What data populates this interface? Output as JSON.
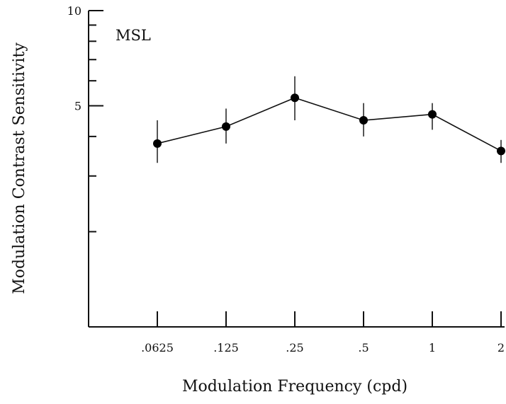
{
  "chart_data": {
    "type": "line",
    "title": "",
    "panel_label": "MSL",
    "xlabel": "Modulation Frequency (cpd)",
    "ylabel": "Modulation Contrast Sensitivity",
    "x_scale": "log2",
    "y_scale": "log",
    "ylim": [
      1,
      10
    ],
    "y_tick_labels": [
      {
        "value": 5,
        "label": "5"
      },
      {
        "value": 10,
        "label": "10"
      }
    ],
    "y_minor_ticks": [
      2,
      3,
      4,
      6,
      7,
      8,
      9
    ],
    "categories": [
      ".0625",
      ".125",
      ".25",
      ".5",
      "1",
      "2"
    ],
    "x": [
      0.0625,
      0.125,
      0.25,
      0.5,
      1,
      2
    ],
    "series": [
      {
        "values": [
          3.8,
          4.3,
          5.3,
          4.5,
          4.7,
          3.6
        ],
        "error_low": [
          3.3,
          3.8,
          4.5,
          4.0,
          4.2,
          3.3
        ],
        "error_high": [
          4.5,
          4.9,
          6.2,
          5.1,
          5.1,
          3.9
        ]
      }
    ],
    "grid": false,
    "legend": "none"
  }
}
